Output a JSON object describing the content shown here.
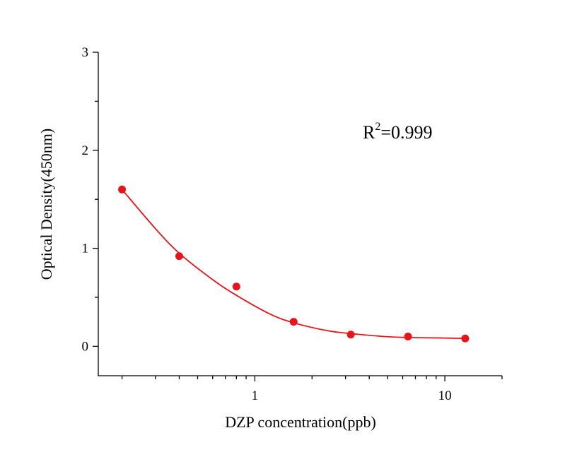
{
  "chart_data": {
    "type": "scatter",
    "xlabel": "DZP concentration(ppb)",
    "ylabel": "Optical Density(450nm)",
    "xscale": "log",
    "xlim": [
      0.15,
      20
    ],
    "ylim": [
      -0.3,
      3
    ],
    "xticks": [
      1,
      10
    ],
    "yticks": [
      0,
      1,
      2,
      3
    ],
    "grid": false,
    "annotation": {
      "base": "R",
      "sup": "2",
      "rest": "=0.999"
    },
    "colors": {
      "series": "#e8141c"
    },
    "series": [
      {
        "x": [
          0.2,
          0.4,
          0.8,
          1.6,
          3.2,
          6.4,
          12.8
        ],
        "y": [
          1.6,
          0.92,
          0.61,
          0.25,
          0.12,
          0.1,
          0.08
        ]
      }
    ],
    "fit_curve": {
      "x": [
        0.2,
        0.3,
        0.4,
        0.6,
        0.8,
        1.2,
        1.6,
        2.4,
        3.2,
        4.8,
        6.4,
        9.6,
        12.8
      ],
      "y": [
        1.6,
        1.2,
        0.95,
        0.68,
        0.52,
        0.33,
        0.24,
        0.16,
        0.13,
        0.1,
        0.09,
        0.085,
        0.08
      ]
    }
  }
}
